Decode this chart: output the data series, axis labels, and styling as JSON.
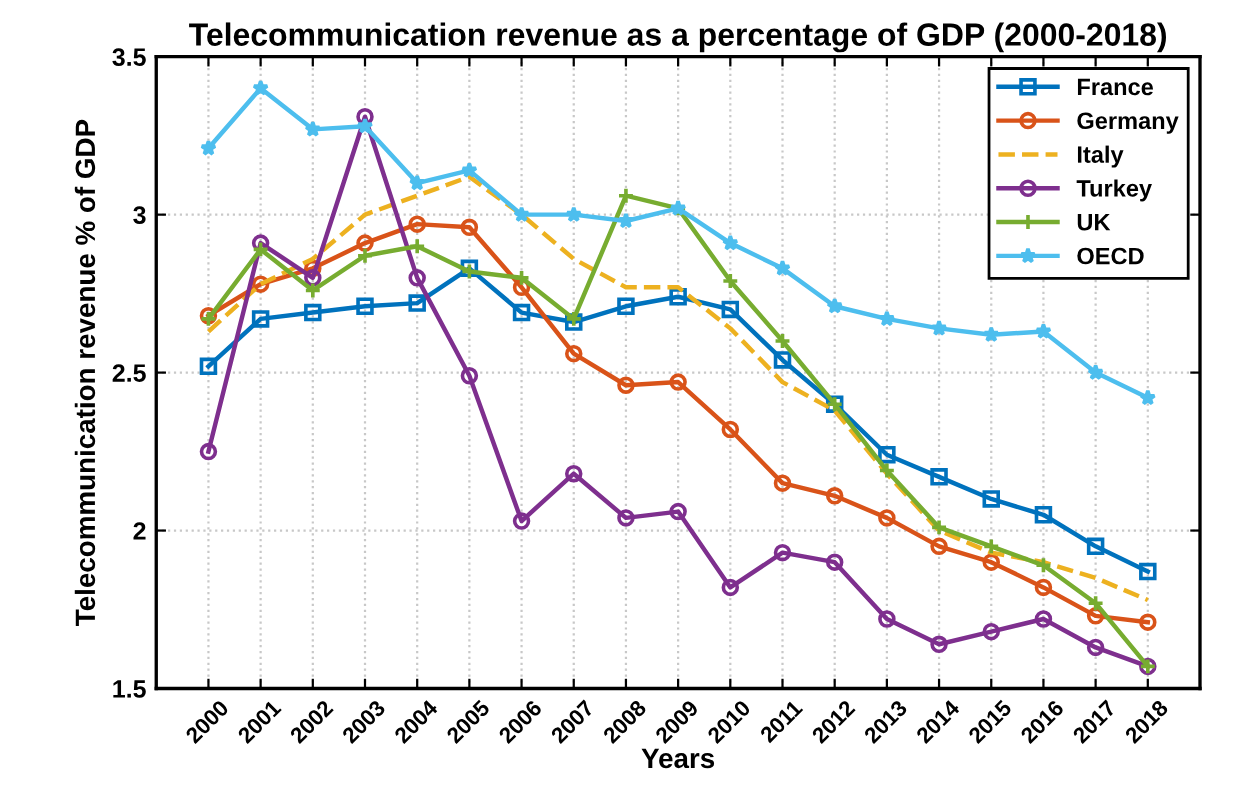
{
  "chart_data": {
    "type": "line",
    "title": "Telecommunication revenue as a percentage of GDP (2000-2018)",
    "xlabel": "Years",
    "ylabel": "Telecommunication revenue % of GDP",
    "categories": [
      "2000",
      "2001",
      "2002",
      "2003",
      "2004",
      "2005",
      "2006",
      "2007",
      "2008",
      "2009",
      "2010",
      "2011",
      "2012",
      "2013",
      "2014",
      "2015",
      "2016",
      "2017",
      "2018"
    ],
    "series": [
      {
        "name": "France",
        "color": "#0072bd",
        "marker": "square",
        "line_style": "solid",
        "values": [
          2.52,
          2.67,
          2.69,
          2.71,
          2.72,
          2.83,
          2.69,
          2.66,
          2.71,
          2.74,
          2.7,
          2.54,
          2.4,
          2.24,
          2.17,
          2.1,
          2.05,
          1.95,
          1.87
        ]
      },
      {
        "name": "Germany",
        "color": "#d95319",
        "marker": "circle",
        "line_style": "solid",
        "values": [
          2.68,
          2.78,
          2.83,
          2.91,
          2.97,
          2.96,
          2.77,
          2.56,
          2.46,
          2.47,
          2.32,
          2.15,
          2.11,
          2.04,
          1.95,
          1.9,
          1.82,
          1.73,
          1.71
        ]
      },
      {
        "name": "Italy",
        "color": "#edb120",
        "marker": "none",
        "line_style": "dashed",
        "values": [
          2.63,
          2.78,
          2.86,
          3.0,
          3.06,
          3.12,
          3.0,
          2.86,
          2.77,
          2.77,
          2.64,
          2.47,
          2.38,
          2.18,
          2.0,
          1.93,
          1.9,
          1.85,
          1.78
        ]
      },
      {
        "name": "Turkey",
        "color": "#7e2f8e",
        "marker": "circle",
        "line_style": "solid",
        "values": [
          2.25,
          2.91,
          2.8,
          3.31,
          2.8,
          2.49,
          2.03,
          2.18,
          2.04,
          2.06,
          1.82,
          1.93,
          1.9,
          1.72,
          1.64,
          1.68,
          1.72,
          1.63,
          1.57
        ]
      },
      {
        "name": "UK",
        "color": "#77ac30",
        "marker": "cross",
        "line_style": "solid",
        "values": [
          2.67,
          2.89,
          2.76,
          2.87,
          2.9,
          2.82,
          2.8,
          2.67,
          3.06,
          3.02,
          2.79,
          2.6,
          2.4,
          2.19,
          2.01,
          1.95,
          1.89,
          1.77,
          1.57
        ]
      },
      {
        "name": "OECD",
        "color": "#4dbeee",
        "marker": "star",
        "line_style": "solid",
        "values": [
          3.21,
          3.4,
          3.27,
          3.28,
          3.1,
          3.14,
          3.0,
          3.0,
          2.98,
          3.02,
          2.91,
          2.83,
          2.71,
          2.67,
          2.64,
          2.62,
          2.63,
          2.5,
          2.42
        ]
      }
    ],
    "ylim": [
      1.5,
      3.5
    ],
    "yticks": [
      1.5,
      2,
      2.5,
      3,
      3.5
    ],
    "grid": true,
    "legend": "top right"
  }
}
